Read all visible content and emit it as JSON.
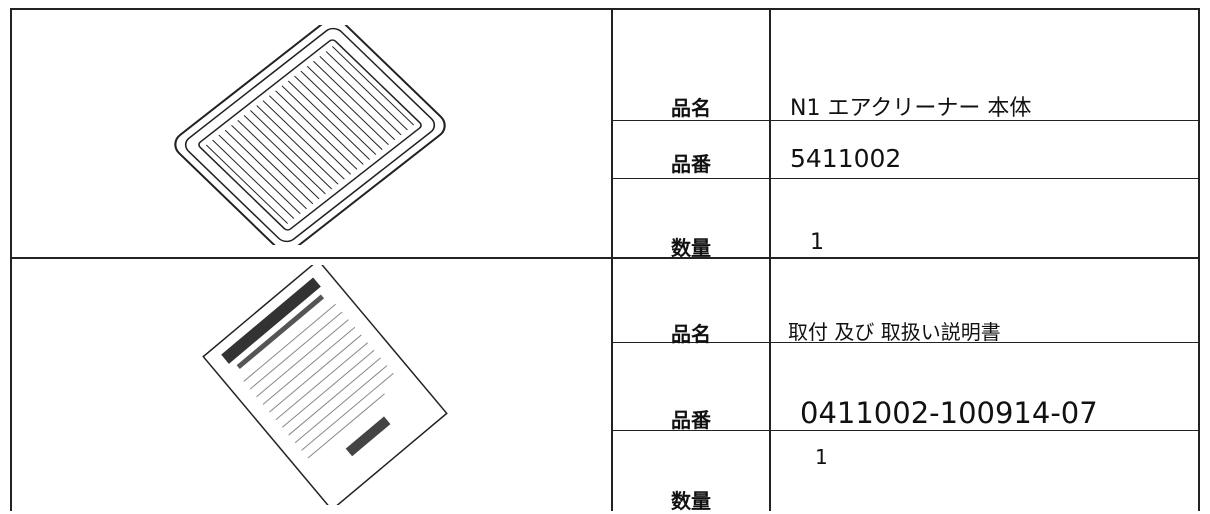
{
  "items": [
    {
      "fields": [
        {
          "label": "品名",
          "value": "N1 エアクリーナー 本体"
        },
        {
          "label": "品番",
          "value": "5411002"
        },
        {
          "label": "数量",
          "value": "1"
        }
      ]
    },
    {
      "fields": [
        {
          "label": "品名",
          "value": "取付 及び 取扱い説明書"
        },
        {
          "label": "品番",
          "value": "0411002-100914-07"
        },
        {
          "label": "数量",
          "value": "1"
        }
      ]
    }
  ]
}
